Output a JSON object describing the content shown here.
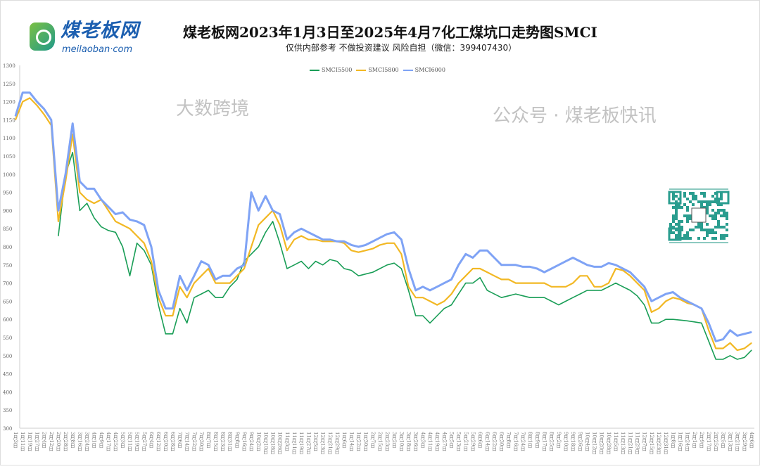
{
  "logo": {
    "cn": "煤老板网",
    "en": "meilaoban·com"
  },
  "watermarks": {
    "left": "大数跨境",
    "right": "公众号 · 煤老板快讯"
  },
  "colors": {
    "SMCI5500": "#1a9e57",
    "SMCI5800": "#f2b824",
    "SMCI6000": "#7fa3f5",
    "drop": "#c9d8fb"
  },
  "chart_data": {
    "type": "line",
    "title": "煤老板网2023年1月3日至2025年4月7化工煤坑口走势图SMCI",
    "subtitle": "仅供内部参考 不做投资建议 风险自担（微信：399407430）",
    "xlabel": "",
    "ylabel": "",
    "ylim": [
      300,
      1300
    ],
    "yticks": [
      300,
      350,
      400,
      450,
      500,
      550,
      600,
      650,
      700,
      750,
      800,
      850,
      900,
      950,
      1000,
      1050,
      1100,
      1150,
      1200,
      1250,
      1300
    ],
    "legend_position": "top-center",
    "grid": false,
    "categories": [
      "1月3日",
      "1月11日",
      "1月19日",
      "1月27日",
      "2月4日",
      "2月12日",
      "2月20日",
      "2月28日",
      "3月8日",
      "3月16日",
      "3月24日",
      "4月1日",
      "4月9日",
      "4月17日",
      "4月25日",
      "5月3日",
      "5月11日",
      "5月19日",
      "5月27日",
      "6月4日",
      "6月12日",
      "6月20日",
      "6月28日",
      "7月6日",
      "7月14日",
      "7月22日",
      "7月30日",
      "8月7日",
      "8月15日",
      "8月23日",
      "8月31日",
      "9月8日",
      "9月16日",
      "9月24日",
      "10月2日",
      "10月10日",
      "10月18日",
      "10月26日",
      "11月3日",
      "11月11日",
      "11月19日",
      "11月27日",
      "12月5日",
      "12月13日",
      "12月21日",
      "12月29日",
      "1月6日",
      "1月14日",
      "1月22日",
      "1月30日",
      "2月7日",
      "2月15日",
      "2月23日",
      "3月2日",
      "3月10日",
      "3月18日",
      "3月26日",
      "4月3日",
      "4月11日",
      "4月19日",
      "4月27日",
      "5月5日",
      "5月13日",
      "5月21日",
      "5月29日",
      "6月6日",
      "6月14日",
      "6月22日",
      "6月30日",
      "7月8日",
      "7月16日",
      "7月24日",
      "8月1日",
      "8月9日",
      "8月17日",
      "8月25日",
      "9月2日",
      "9月10日",
      "9月18日",
      "9月26日",
      "10月4日",
      "10月12日",
      "10月20日",
      "10月28日",
      "11月5日",
      "11月13日",
      "11月21日",
      "11月29日",
      "12月7日",
      "12月15日",
      "12月23日",
      "12月31日",
      "1月8日",
      "1月16日",
      "1月24日",
      "2月1日",
      "2月9日",
      "2月17日",
      "2月25日",
      "3月5日",
      "3月13日",
      "3月21日",
      "3月29日",
      "4月6日"
    ],
    "series": [
      {
        "name": "SMCI5500",
        "values": [
          null,
          null,
          null,
          null,
          null,
          null,
          830,
          1000,
          1060,
          900,
          920,
          880,
          855,
          845,
          840,
          800,
          720,
          810,
          790,
          750,
          640,
          560,
          560,
          630,
          590,
          660,
          670,
          680,
          660,
          660,
          690,
          710,
          760,
          780,
          800,
          840,
          870,
          810,
          740,
          750,
          760,
          740,
          760,
          750,
          765,
          760,
          740,
          735,
          720,
          725,
          730,
          740,
          750,
          755,
          740,
          680,
          610,
          610,
          590,
          610,
          630,
          640,
          670,
          700,
          700,
          715,
          680,
          670,
          660,
          665,
          670,
          665,
          660,
          660,
          660,
          650,
          640,
          650,
          660,
          670,
          680,
          680,
          680,
          690,
          700,
          690,
          680,
          665,
          640,
          590,
          590,
          600,
          600,
          598,
          596,
          593,
          590,
          540,
          490,
          490,
          500,
          490,
          495,
          515
        ]
      },
      {
        "name": "SMCI5800",
        "values": [
          1150,
          1200,
          1210,
          1190,
          1165,
          1135,
          870,
          980,
          1110,
          950,
          930,
          920,
          930,
          900,
          870,
          860,
          850,
          830,
          810,
          760,
          660,
          610,
          610,
          690,
          660,
          700,
          720,
          740,
          700,
          700,
          700,
          720,
          740,
          800,
          860,
          880,
          900,
          860,
          790,
          820,
          830,
          820,
          820,
          815,
          815,
          815,
          810,
          790,
          785,
          790,
          795,
          805,
          810,
          810,
          780,
          690,
          660,
          660,
          650,
          640,
          650,
          670,
          700,
          720,
          740,
          740,
          730,
          720,
          710,
          710,
          700,
          700,
          700,
          700,
          700,
          690,
          690,
          690,
          700,
          720,
          720,
          690,
          690,
          700,
          740,
          735,
          720,
          700,
          680,
          620,
          630,
          650,
          660,
          655,
          645,
          640,
          630,
          570,
          520,
          520,
          535,
          515,
          520,
          535
        ]
      },
      {
        "name": "SMCI6000",
        "values": [
          1160,
          1225,
          1225,
          1200,
          1180,
          1150,
          900,
          1000,
          1140,
          980,
          960,
          960,
          930,
          910,
          890,
          895,
          875,
          870,
          860,
          800,
          680,
          630,
          630,
          720,
          680,
          720,
          760,
          750,
          710,
          720,
          720,
          740,
          750,
          950,
          900,
          940,
          900,
          890,
          820,
          840,
          850,
          840,
          830,
          820,
          820,
          815,
          815,
          805,
          800,
          805,
          815,
          825,
          835,
          840,
          820,
          740,
          680,
          690,
          680,
          690,
          700,
          710,
          750,
          780,
          770,
          790,
          790,
          770,
          750,
          750,
          750,
          745,
          745,
          740,
          730,
          740,
          750,
          760,
          770,
          760,
          750,
          745,
          745,
          755,
          750,
          740,
          730,
          710,
          690,
          650,
          660,
          670,
          675,
          660,
          650,
          640,
          630,
          590,
          540,
          545,
          570,
          555,
          560,
          565
        ]
      }
    ]
  }
}
